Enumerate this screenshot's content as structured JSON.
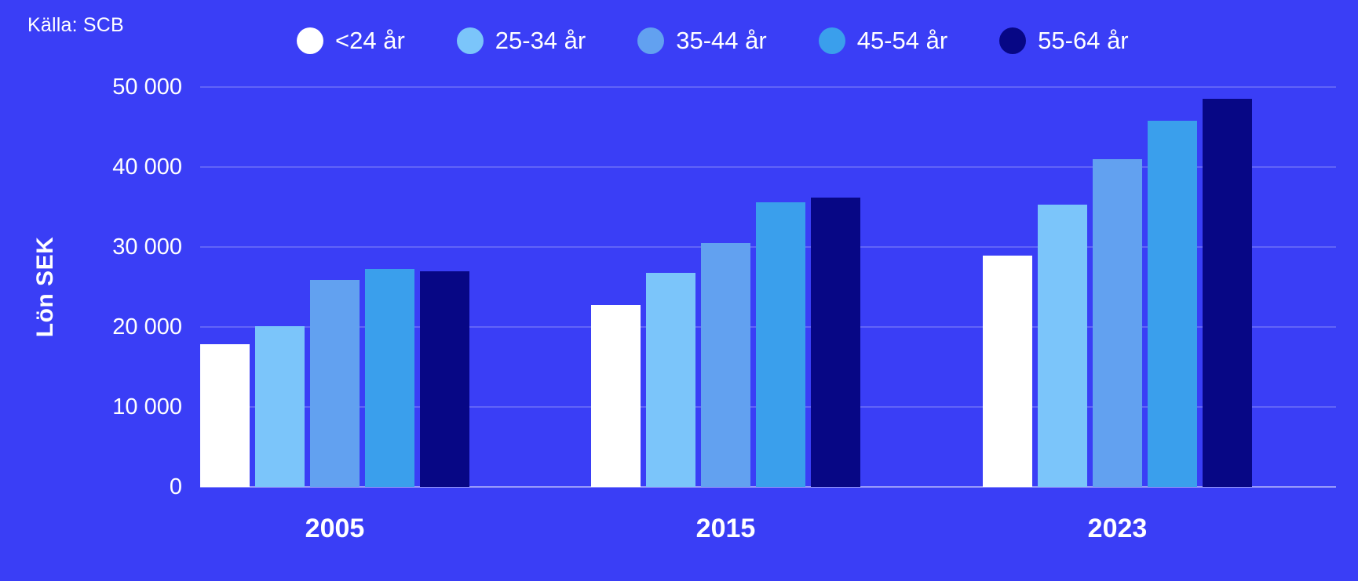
{
  "source": {
    "label": "Källa: SCB"
  },
  "colors": {
    "background": "#3A3EF6",
    "text": "#FFFFFF",
    "gridline": "rgba(255,255,255,0.20)",
    "axis_line": "rgba(255,255,255,0.48)"
  },
  "chart_data": {
    "type": "bar",
    "title": "",
    "xlabel": "",
    "ylabel": "Lön SEK",
    "source": "Källa: SCB",
    "categories": [
      "2005",
      "2015",
      "2023"
    ],
    "series": [
      {
        "name": "<24 år",
        "color": "#FFFFFF",
        "values": [
          17800,
          22700,
          28900
        ]
      },
      {
        "name": "25-34 år",
        "color": "#7BC5FA",
        "values": [
          20100,
          26800,
          35300
        ]
      },
      {
        "name": "35-44 år",
        "color": "#62A1F0",
        "values": [
          25900,
          30500,
          41000
        ]
      },
      {
        "name": "45-54 år",
        "color": "#3A9FEC",
        "values": [
          27300,
          35600,
          45800
        ]
      },
      {
        "name": "55-64 år",
        "color": "#070785",
        "values": [
          27000,
          36200,
          48500
        ]
      }
    ],
    "ylim": [
      0,
      50000
    ],
    "ytick_interval": 10000,
    "ytick_labels": [
      "0",
      "10 000",
      "20 000",
      "30 000",
      "40 000",
      "50 000"
    ],
    "grid": true,
    "legend_position": "top"
  }
}
